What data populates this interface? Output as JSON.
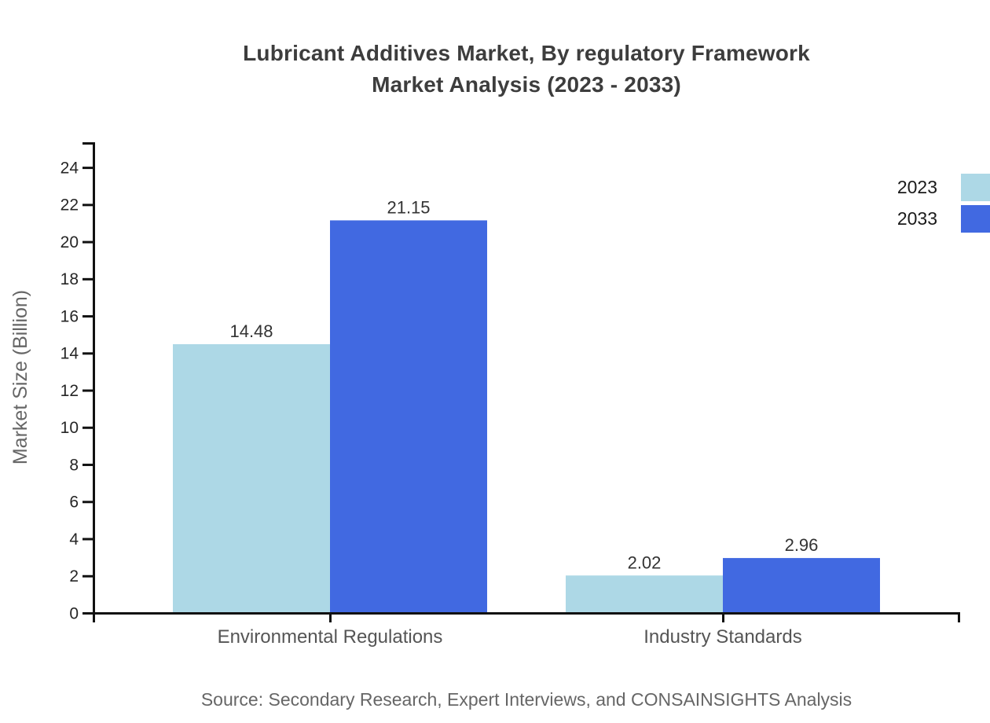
{
  "title": {
    "line1": "Lubricant Additives Market, By regulatory Framework",
    "line2": "Market Analysis (2023 - 2033)"
  },
  "source_note": "Source: Secondary Research, Expert Interviews, and CONSAINSIGHTS Analysis",
  "chart_data": {
    "type": "bar",
    "title": "Lubricant Additives Market, By regulatory Framework Market Analysis (2023 - 2033)",
    "categories": [
      "Environmental Regulations",
      "Industry Standards"
    ],
    "series": [
      {
        "name": "2023",
        "color": "#ADD8E6",
        "values": [
          14.48,
          2.02
        ]
      },
      {
        "name": "2033",
        "color": "#4169E1",
        "values": [
          21.15,
          2.96
        ]
      }
    ],
    "value_labels": [
      [
        "14.48",
        "2.02"
      ],
      [
        "21.15",
        "2.96"
      ]
    ],
    "xlabel": "",
    "ylabel": "Market Size (Billion)",
    "ylim": [
      0,
      25.38
    ],
    "yticks": [
      0,
      2,
      4,
      6,
      8,
      10,
      12,
      14,
      16,
      18,
      20,
      22,
      24
    ],
    "grid": false,
    "legend_position": "top-right",
    "colors": {
      "axis": "#111111",
      "tick_label": "#262626",
      "category_label": "#555555",
      "value_label": "#333333",
      "axis_title": "#666666",
      "title_text": "#3d3d3d",
      "source_text": "#666666",
      "legend_text": "#1a1a1a",
      "background": "#ffffff"
    }
  }
}
